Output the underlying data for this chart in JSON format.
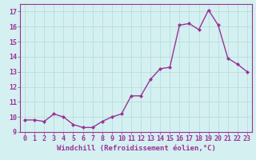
{
  "x": [
    0,
    1,
    2,
    3,
    4,
    5,
    6,
    7,
    8,
    9,
    10,
    11,
    12,
    13,
    14,
    15,
    16,
    17,
    18,
    19,
    20,
    21,
    22,
    23
  ],
  "y": [
    9.8,
    9.8,
    9.7,
    10.2,
    10.0,
    9.5,
    9.3,
    9.3,
    9.7,
    10.0,
    10.2,
    11.4,
    11.4,
    12.5,
    13.2,
    13.3,
    16.1,
    16.2,
    15.8,
    17.1,
    16.1,
    13.9,
    13.5,
    13.0
  ],
  "line_color": "#993399",
  "marker": "D",
  "marker_size": 2.0,
  "linewidth": 1.0,
  "xlabel": "Windchill (Refroidissement éolien,°C)",
  "xlabel_fontsize": 6.5,
  "ylim": [
    9,
    17.5
  ],
  "yticks": [
    9,
    10,
    11,
    12,
    13,
    14,
    15,
    16,
    17
  ],
  "xticks": [
    0,
    1,
    2,
    3,
    4,
    5,
    6,
    7,
    8,
    9,
    10,
    11,
    12,
    13,
    14,
    15,
    16,
    17,
    18,
    19,
    20,
    21,
    22,
    23
  ],
  "tick_fontsize": 6.0,
  "bg_color": "#d4f0f0",
  "grid_color": "#b8dede",
  "plot_bg": "#d4f0f0"
}
